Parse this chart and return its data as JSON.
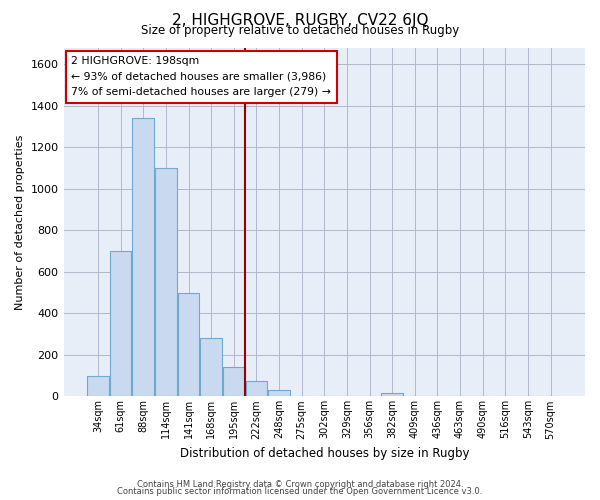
{
  "title": "2, HIGHGROVE, RUGBY, CV22 6JQ",
  "subtitle": "Size of property relative to detached houses in Rugby",
  "xlabel": "Distribution of detached houses by size in Rugby",
  "ylabel": "Number of detached properties",
  "footer_line1": "Contains HM Land Registry data © Crown copyright and database right 2024.",
  "footer_line2": "Contains public sector information licensed under the Open Government Licence v3.0.",
  "categories": [
    "34sqm",
    "61sqm",
    "88sqm",
    "114sqm",
    "141sqm",
    "168sqm",
    "195sqm",
    "222sqm",
    "248sqm",
    "275sqm",
    "302sqm",
    "329sqm",
    "356sqm",
    "382sqm",
    "409sqm",
    "436sqm",
    "463sqm",
    "490sqm",
    "516sqm",
    "543sqm",
    "570sqm"
  ],
  "values": [
    100,
    700,
    1340,
    1100,
    500,
    280,
    140,
    75,
    30,
    0,
    0,
    0,
    0,
    15,
    0,
    0,
    0,
    0,
    0,
    0,
    0
  ],
  "bar_fill_color": "#c9d9ef",
  "bar_edge_color": "#6fa8d0",
  "annotation_box_text": "2 HIGHGROVE: 198sqm",
  "annotation_line1": "← 93% of detached houses are smaller (3,986)",
  "annotation_line2": "7% of semi-detached houses are larger (279) →",
  "annotation_box_color": "white",
  "annotation_box_edgecolor": "#cc0000",
  "vline_x_pos": 6.5,
  "vline_color": "#990000",
  "ylim": [
    0,
    1680
  ],
  "yticks": [
    0,
    200,
    400,
    600,
    800,
    1000,
    1200,
    1400,
    1600
  ],
  "plot_bg_color": "#e8eef8",
  "figure_bg_color": "white",
  "grid_color": "#b0b8cc"
}
